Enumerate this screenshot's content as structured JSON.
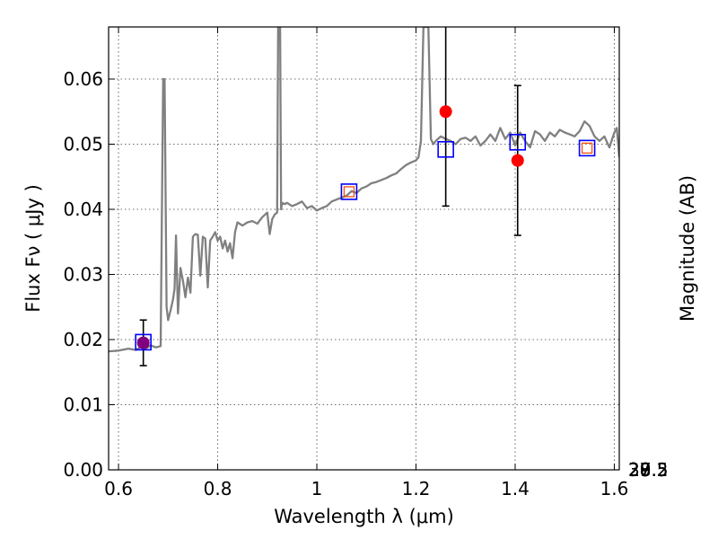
{
  "chart_data": {
    "type": "scatter",
    "xlabel": "Wavelength  λ (μm)",
    "ylabel": "Flux  Fν  ( μJy )",
    "y2label": "Magnitude (AB)",
    "xlim": [
      0.58,
      1.61
    ],
    "ylim": [
      0.0,
      0.068
    ],
    "x_ticks": [
      0.6,
      0.8,
      1.0,
      1.2,
      1.4,
      1.6
    ],
    "x_tick_labels": [
      "0.6",
      "0.8",
      "1",
      "1.2",
      "1.4",
      "1.6"
    ],
    "y_ticks": [
      0.0,
      0.01,
      0.02,
      0.03,
      0.04,
      0.05,
      0.06
    ],
    "y_tick_labels": [
      "0.00",
      "0.01",
      "0.02",
      "0.03",
      "0.04",
      "0.05",
      "0.06"
    ],
    "y2_ticks": [
      27,
      27.2,
      27.5,
      28,
      28.5,
      29,
      30
    ],
    "y2_tick_labels": [
      "27",
      "27.2",
      "27.5",
      "28",
      "28.5",
      "29",
      "30"
    ],
    "grid": true,
    "colors": {
      "model": "#808080",
      "observed": "#ff0000",
      "observed_nir": "#800080",
      "model_photometry": "#0000ff",
      "model_photometry_inner": "#ff4500",
      "errorbar": "#000000"
    },
    "model_spectrum": {
      "x": [
        0.58,
        0.6,
        0.62,
        0.635,
        0.645,
        0.655,
        0.665,
        0.675,
        0.685,
        0.69,
        0.693,
        0.697,
        0.7,
        0.705,
        0.71,
        0.713,
        0.716,
        0.72,
        0.725,
        0.73,
        0.735,
        0.74,
        0.745,
        0.75,
        0.755,
        0.76,
        0.765,
        0.77,
        0.775,
        0.78,
        0.785,
        0.79,
        0.795,
        0.8,
        0.805,
        0.81,
        0.815,
        0.82,
        0.825,
        0.83,
        0.835,
        0.84,
        0.85,
        0.86,
        0.87,
        0.88,
        0.89,
        0.9,
        0.905,
        0.91,
        0.915,
        0.92,
        0.922,
        0.924,
        0.926,
        0.928,
        0.93,
        0.935,
        0.94,
        0.95,
        0.96,
        0.97,
        0.98,
        0.99,
        1.0,
        1.01,
        1.02,
        1.03,
        1.04,
        1.05,
        1.06,
        1.07,
        1.08,
        1.09,
        1.1,
        1.11,
        1.12,
        1.13,
        1.14,
        1.15,
        1.16,
        1.17,
        1.18,
        1.19,
        1.2,
        1.205,
        1.21,
        1.215,
        1.22,
        1.225,
        1.23,
        1.235,
        1.24,
        1.25,
        1.26,
        1.27,
        1.28,
        1.29,
        1.3,
        1.31,
        1.32,
        1.33,
        1.34,
        1.35,
        1.36,
        1.37,
        1.38,
        1.39,
        1.4,
        1.41,
        1.42,
        1.43,
        1.44,
        1.45,
        1.46,
        1.47,
        1.48,
        1.49,
        1.5,
        1.51,
        1.52,
        1.53,
        1.54,
        1.55,
        1.56,
        1.57,
        1.58,
        1.59,
        1.6,
        1.605,
        1.61
      ],
      "y": [
        0.0182,
        0.0183,
        0.0186,
        0.0184,
        0.0189,
        0.0186,
        0.0191,
        0.0188,
        0.019,
        0.06,
        0.06,
        0.025,
        0.023,
        0.0245,
        0.0262,
        0.0278,
        0.036,
        0.024,
        0.031,
        0.029,
        0.0265,
        0.0295,
        0.0272,
        0.0358,
        0.0362,
        0.0361,
        0.0298,
        0.0358,
        0.0355,
        0.028,
        0.0352,
        0.0358,
        0.0365,
        0.0352,
        0.0358,
        0.034,
        0.0352,
        0.0335,
        0.0348,
        0.0325,
        0.0365,
        0.038,
        0.0375,
        0.038,
        0.0382,
        0.0378,
        0.0388,
        0.0395,
        0.0362,
        0.0385,
        0.0392,
        0.0395,
        0.068,
        0.068,
        0.068,
        0.04,
        0.041,
        0.0408,
        0.041,
        0.0405,
        0.0408,
        0.0412,
        0.0402,
        0.0405,
        0.0398,
        0.0402,
        0.0405,
        0.0412,
        0.0415,
        0.0418,
        0.0421,
        0.0428,
        0.0425,
        0.0432,
        0.0435,
        0.044,
        0.0442,
        0.0445,
        0.0448,
        0.0452,
        0.0455,
        0.0462,
        0.0468,
        0.0472,
        0.0475,
        0.048,
        0.0505,
        0.068,
        0.068,
        0.068,
        0.0508,
        0.05,
        0.0505,
        0.0512,
        0.0508,
        0.0505,
        0.05,
        0.0508,
        0.051,
        0.0505,
        0.0512,
        0.0498,
        0.0505,
        0.0515,
        0.0505,
        0.0525,
        0.0508,
        0.0518,
        0.0498,
        0.0518,
        0.0505,
        0.0495,
        0.052,
        0.0515,
        0.0505,
        0.0518,
        0.0512,
        0.0522,
        0.0518,
        0.0515,
        0.0512,
        0.052,
        0.0535,
        0.0528,
        0.0512,
        0.0505,
        0.0512,
        0.0495,
        0.0518,
        0.0525,
        0.048
      ]
    },
    "series": [
      {
        "x": [
          0.65,
          1.26,
          1.405
        ],
        "y": [
          0.0195,
          0.055,
          0.0475
        ],
        "yerr_low": [
          0.0035,
          0.0145,
          0.0115
        ],
        "yerr_high": [
          0.0035,
          0.019,
          0.0115
        ]
      },
      {
        "x": [
          0.65,
          1.065,
          1.26,
          1.405,
          1.545
        ],
        "y": [
          0.0196,
          0.0427,
          0.0492,
          0.0503,
          0.0494
        ]
      }
    ]
  }
}
